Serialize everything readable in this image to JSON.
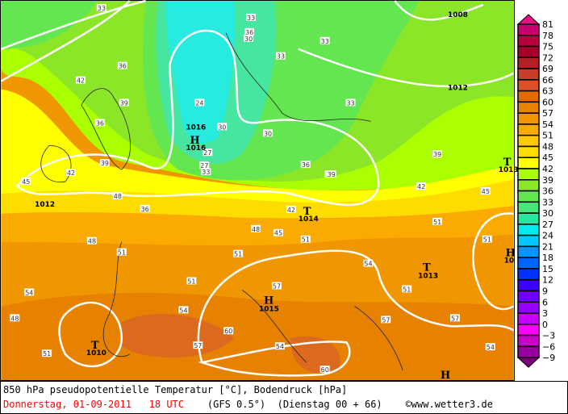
{
  "map": {
    "title": "850 hPa pseudopotentielle Temperatur [°C], Bodendruck [hPa]",
    "date": "Donnerstag, 01-09-2011",
    "time": "18 UTC",
    "model": "(GFS 0.5°)",
    "run": "(Dienstag 00 + 66)",
    "copyright_symbol": "©",
    "source": "www.wetter3.de",
    "isobar_labels": [
      "1008",
      "1012",
      "1016",
      "1016",
      "1012",
      "1014",
      "1013",
      "1010",
      "1015",
      "1013"
    ],
    "pressure_centers": [
      {
        "type": "H",
        "value": "1016"
      },
      {
        "type": "T",
        "value": "1014"
      },
      {
        "type": "T",
        "value": "1013"
      },
      {
        "type": "H",
        "value": "1015"
      },
      {
        "type": "T",
        "value": "1010"
      },
      {
        "type": "T",
        "value": "1013"
      },
      {
        "type": "H",
        "value": "10"
      },
      {
        "type": "H",
        "value": ""
      }
    ],
    "contour_labels": [
      "33",
      "36",
      "36",
      "39",
      "42",
      "36",
      "39",
      "33",
      "33",
      "33",
      "30",
      "30",
      "27",
      "33",
      "36",
      "39",
      "39",
      "42",
      "42",
      "45",
      "45",
      "48",
      "51",
      "51",
      "51",
      "48",
      "51",
      "54",
      "57",
      "60",
      "57",
      "54",
      "51",
      "51",
      "48",
      "48",
      "51",
      "54",
      "57",
      "60",
      "54",
      "51",
      "54",
      "57",
      "45",
      "42",
      "39",
      "33",
      "30",
      "24",
      "27",
      "36"
    ]
  },
  "legend": {
    "labels": [
      "81",
      "78",
      "75",
      "72",
      "69",
      "66",
      "63",
      "60",
      "57",
      "54",
      "51",
      "48",
      "45",
      "42",
      "39",
      "36",
      "33",
      "30",
      "27",
      "24",
      "21",
      "18",
      "15",
      "12",
      "9",
      "6",
      "3",
      "0",
      "−3",
      "−6",
      "−9"
    ],
    "colors": [
      "#c8006e",
      "#b80040",
      "#a8002c",
      "#b41e24",
      "#c83c28",
      "#dc5028",
      "#e66a00",
      "#e68200",
      "#f09600",
      "#faaa00",
      "#ffc800",
      "#ffdc00",
      "#ffff00",
      "#aaff00",
      "#8ce628",
      "#64e650",
      "#46e678",
      "#28e6a0",
      "#00ebeb",
      "#00c8ff",
      "#0096ff",
      "#0064ff",
      "#0032ff",
      "#3c00ff",
      "#6e00ff",
      "#9600ff",
      "#c800ff",
      "#ff00ff",
      "#c800c8",
      "#9600a0"
    ],
    "top_color": "#e6107e",
    "bottom_color": "#780078"
  }
}
